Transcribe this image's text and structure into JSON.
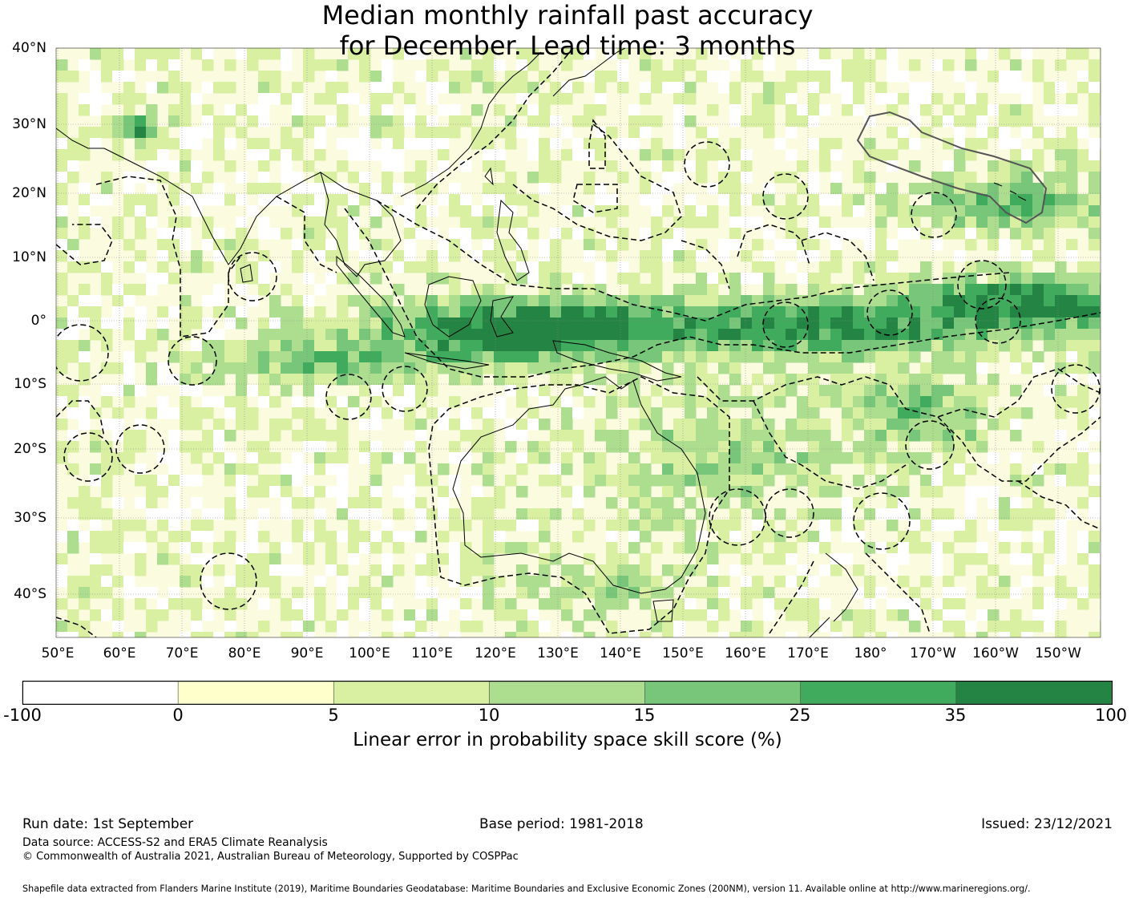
{
  "title_line1": "Median monthly rainfall past accuracy",
  "title_line2": "for December. Lead time: 3 months",
  "lat_labels": [
    "40°N",
    "30°N",
    "20°N",
    "10°N",
    "0°",
    "10°S",
    "20°S",
    "30°S",
    "40°S"
  ],
  "lon_labels": [
    "50°E",
    "60°E",
    "70°E",
    "80°E",
    "90°E",
    "100°E",
    "110°E",
    "120°E",
    "130°E",
    "140°E",
    "150°E",
    "160°E",
    "170°E",
    "180°",
    "170°W",
    "160°W",
    "150°W"
  ],
  "colorbar": {
    "ticks": [
      "-100",
      "0",
      "5",
      "10",
      "15",
      "25",
      "35",
      "100"
    ],
    "colors": [
      "#ffffff",
      "#ffffcc",
      "#d9f0a3",
      "#addd8e",
      "#78c679",
      "#41ab5d",
      "#238443"
    ],
    "label": "Linear error in probability space skill score (%)"
  },
  "footer": {
    "run_date": "Run date: 1st September",
    "base_period": "Base period: 1981-2018",
    "issued": "Issued: 23/12/2021",
    "data_source": "Data source: ACCESS-S2 and ERA5 Climate Reanalysis",
    "copyright": "© Commonwealth of Australia 2021, Australian Bureau of Meteorology, Supported by COSPPac",
    "shapefile": "Shapefile data extracted from Flanders Marine Institute (2019), Maritime Boundaries Geodatabase: Maritime Boundaries and Exclusive Economic Zones (200NM), version 11. Available online at http://www.marineregions.org/."
  }
}
